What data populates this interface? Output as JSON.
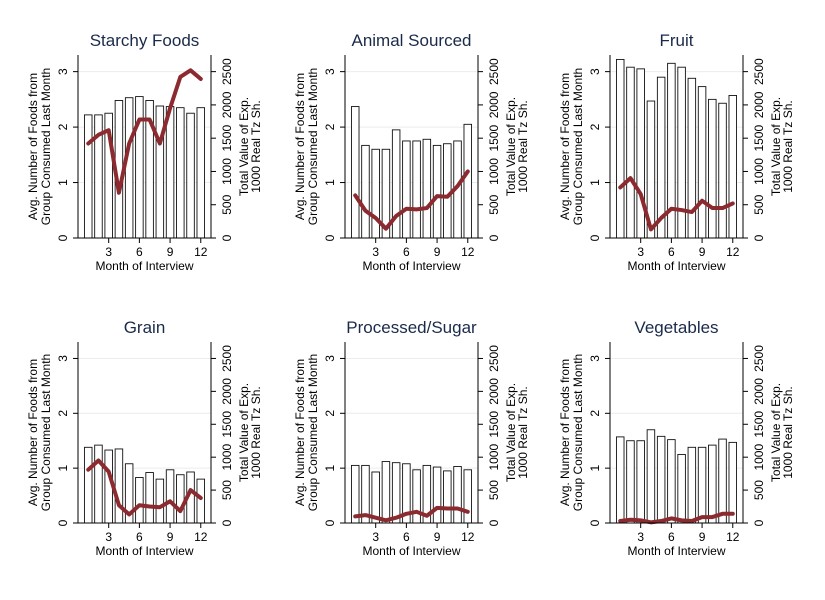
{
  "chart_data": [
    {
      "type": "bar+line",
      "title": "Starchy Foods",
      "xlabel": "Month of Interview",
      "ylabel_left": [
        "Avg. Number of Foods from",
        "Group Consumed Last Month"
      ],
      "ylabel_right": [
        "Total Value of Exp.",
        "1000 Real Tz Sh."
      ],
      "xticks": [
        "3",
        "6",
        "9",
        "12"
      ],
      "yticks_left": [
        "0",
        "1",
        "2",
        "3"
      ],
      "yticks_right": [
        "0",
        "500",
        "1000",
        "1500",
        "2000",
        "2500"
      ],
      "ylim_left": [
        0,
        3.3
      ],
      "ylim_right": [
        0,
        2750
      ],
      "x": [
        1,
        2,
        3,
        4,
        5,
        6,
        7,
        8,
        9,
        10,
        11,
        12
      ],
      "bars": [
        2.22,
        2.22,
        2.25,
        2.48,
        2.53,
        2.55,
        2.48,
        2.38,
        2.37,
        2.35,
        2.25,
        2.35
      ],
      "line": [
        1420,
        1550,
        1620,
        680,
        1420,
        1780,
        1780,
        1420,
        1950,
        2420,
        2520,
        2390
      ]
    },
    {
      "type": "bar+line",
      "title": "Animal Sourced",
      "xlabel": "Month of Interview",
      "ylabel_left": [
        "Avg. Number of Foods from",
        "Group Consumed Last Month"
      ],
      "ylabel_right": [
        "Total Value of Exp.",
        "1000 Real Tz Sh."
      ],
      "xticks": [
        "3",
        "6",
        "9",
        "12"
      ],
      "yticks_left": [
        "0",
        "1",
        "2",
        "3"
      ],
      "yticks_right": [
        "0",
        "500",
        "1000",
        "1500",
        "2000",
        "2500"
      ],
      "ylim_left": [
        0,
        3.3
      ],
      "ylim_right": [
        0,
        2750
      ],
      "x": [
        1,
        2,
        3,
        4,
        5,
        6,
        7,
        8,
        9,
        10,
        11,
        12
      ],
      "bars": [
        2.37,
        1.67,
        1.6,
        1.6,
        1.95,
        1.75,
        1.75,
        1.78,
        1.67,
        1.7,
        1.75,
        2.05
      ],
      "line": [
        640,
        410,
        300,
        140,
        330,
        440,
        430,
        450,
        630,
        620,
        780,
        1000
      ]
    },
    {
      "type": "bar+line",
      "title": "Fruit",
      "xlabel": "Month of Interview",
      "ylabel_left": [
        "Avg. Number of Foods from",
        "Group Consumed Last Month"
      ],
      "ylabel_right": [
        "Total Value of Exp.",
        "1000 Real Tz Sh."
      ],
      "xticks": [
        "3",
        "6",
        "9",
        "12"
      ],
      "yticks_left": [
        "0",
        "1",
        "2",
        "3"
      ],
      "yticks_right": [
        "0",
        "500",
        "1000",
        "1500",
        "2000",
        "2500"
      ],
      "ylim_left": [
        0,
        3.3
      ],
      "ylim_right": [
        0,
        2750
      ],
      "x": [
        1,
        2,
        3,
        4,
        5,
        6,
        7,
        8,
        9,
        10,
        11,
        12
      ],
      "bars": [
        3.22,
        3.08,
        3.05,
        2.47,
        2.9,
        3.15,
        3.08,
        2.88,
        2.73,
        2.5,
        2.43,
        2.57
      ],
      "line": [
        760,
        900,
        660,
        130,
        300,
        440,
        420,
        390,
        560,
        450,
        450,
        520
      ]
    },
    {
      "type": "bar+line",
      "title": "Grain",
      "xlabel": "Month of Interview",
      "ylabel_left": [
        "Avg. Number of Foods from",
        "Group Consumed Last Month"
      ],
      "ylabel_right": [
        "Total Value of Exp.",
        "1000 Real Tz Sh."
      ],
      "xticks": [
        "3",
        "6",
        "9",
        "12"
      ],
      "yticks_left": [
        "0",
        "1",
        "2",
        "3"
      ],
      "yticks_right": [
        "0",
        "500",
        "1000",
        "1500",
        "2000",
        "2500"
      ],
      "ylim_left": [
        0,
        3.3
      ],
      "ylim_right": [
        0,
        2750
      ],
      "x": [
        1,
        2,
        3,
        4,
        5,
        6,
        7,
        8,
        9,
        10,
        11,
        12
      ],
      "bars": [
        1.38,
        1.42,
        1.33,
        1.35,
        1.08,
        0.83,
        0.92,
        0.8,
        0.97,
        0.88,
        0.93,
        0.8
      ],
      "line": [
        810,
        950,
        780,
        270,
        130,
        270,
        250,
        240,
        330,
        180,
        500,
        380
      ]
    },
    {
      "type": "bar+line",
      "title": "Processed/Sugar",
      "xlabel": "Month of Interview",
      "ylabel_left": [
        "Avg. Number of Foods from",
        "Group Consumed Last Month"
      ],
      "ylabel_right": [
        "Total Value of Exp.",
        "1000 Real Tz Sh."
      ],
      "xticks": [
        "3",
        "6",
        "9",
        "12"
      ],
      "yticks_left": [
        "0",
        "1",
        "2",
        "3"
      ],
      "yticks_right": [
        "0",
        "500",
        "1000",
        "1500",
        "2000",
        "2500"
      ],
      "ylim_left": [
        0,
        3.3
      ],
      "ylim_right": [
        0,
        2750
      ],
      "x": [
        1,
        2,
        3,
        4,
        5,
        6,
        7,
        8,
        9,
        10,
        11,
        12
      ],
      "bars": [
        1.05,
        1.05,
        0.93,
        1.12,
        1.1,
        1.08,
        0.97,
        1.05,
        1.02,
        0.95,
        1.03,
        0.97
      ],
      "line": [
        100,
        120,
        80,
        40,
        80,
        140,
        170,
        110,
        230,
        220,
        220,
        170
      ]
    },
    {
      "type": "bar+line",
      "title": "Vegetables",
      "xlabel": "Month of Interview",
      "ylabel_left": [
        "Avg. Number of Foods from",
        "Group Consumed Last Month"
      ],
      "ylabel_right": [
        "Total Value of Exp.",
        "1000 Real Tz Sh."
      ],
      "xticks": [
        "3",
        "6",
        "9",
        "12"
      ],
      "yticks_left": [
        "0",
        "1",
        "2",
        "3"
      ],
      "yticks_right": [
        "0",
        "500",
        "1000",
        "1500",
        "2000",
        "2500"
      ],
      "ylim_left": [
        0,
        3.3
      ],
      "ylim_right": [
        0,
        2750
      ],
      "x": [
        1,
        2,
        3,
        4,
        5,
        6,
        7,
        8,
        9,
        10,
        11,
        12
      ],
      "bars": [
        1.57,
        1.5,
        1.5,
        1.7,
        1.58,
        1.52,
        1.25,
        1.38,
        1.38,
        1.42,
        1.53,
        1.47
      ],
      "line": [
        30,
        50,
        40,
        10,
        30,
        70,
        40,
        30,
        90,
        90,
        140,
        140
      ]
    }
  ],
  "colors": {
    "bar_fill": "#ffffff",
    "bar_stroke": "#111111",
    "line": "#8b2a2f",
    "title": "#1a2a4a",
    "grid": "#ececec"
  }
}
